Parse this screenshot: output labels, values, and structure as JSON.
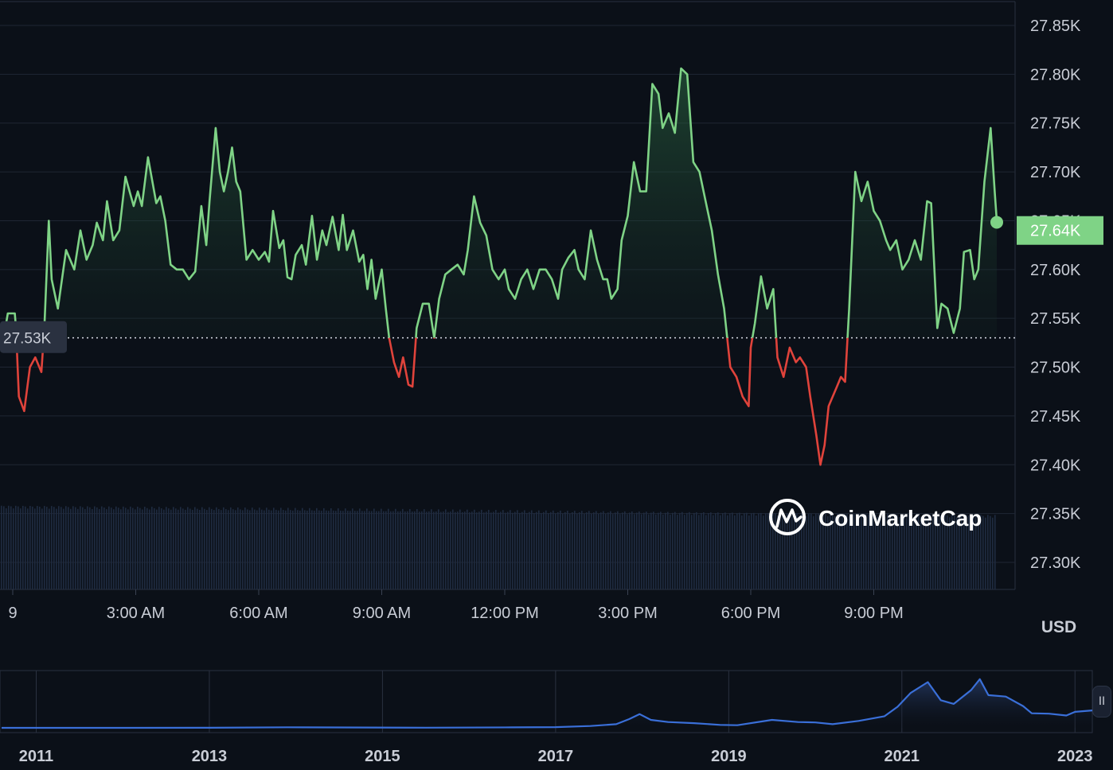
{
  "chart_data": {
    "type": "line",
    "main": {
      "x_tick_labels": [
        "9",
        "3:00 AM",
        "6:00 AM",
        "9:00 AM",
        "12:00 PM",
        "3:00 PM",
        "6:00 PM",
        "9:00 PM"
      ],
      "y_tick_labels": [
        "27.85K",
        "27.80K",
        "27.75K",
        "27.70K",
        "27.65K",
        "27.60K",
        "27.55K",
        "27.50K",
        "27.45K",
        "27.40K",
        "27.35K",
        "27.30K"
      ],
      "y_ticks": [
        27850,
        27800,
        27750,
        27700,
        27650,
        27600,
        27550,
        27500,
        27450,
        27400,
        27350,
        27300
      ],
      "ylim": [
        27275,
        27870
      ],
      "xlim": [
        -0.3,
        24
      ],
      "reference_value": 27530,
      "reference_label": "27.53K",
      "current_value": 27640,
      "current_label": "27.64K",
      "currency": "USD",
      "grid": true,
      "points": [
        [
          -0.3,
          27540
        ],
        [
          -0.18,
          27540
        ],
        [
          -0.12,
          27555
        ],
        [
          0.05,
          27555
        ],
        [
          0.08,
          27540
        ],
        [
          0.15,
          27470
        ],
        [
          0.28,
          27455
        ],
        [
          0.42,
          27500
        ],
        [
          0.55,
          27510
        ],
        [
          0.7,
          27495
        ],
        [
          0.77,
          27540
        ],
        [
          0.88,
          27650
        ],
        [
          0.95,
          27590
        ],
        [
          1.1,
          27560
        ],
        [
          1.3,
          27620
        ],
        [
          1.5,
          27600
        ],
        [
          1.65,
          27640
        ],
        [
          1.8,
          27610
        ],
        [
          1.95,
          27625
        ],
        [
          2.05,
          27648
        ],
        [
          2.2,
          27630
        ],
        [
          2.3,
          27670
        ],
        [
          2.45,
          27630
        ],
        [
          2.6,
          27640
        ],
        [
          2.75,
          27695
        ],
        [
          2.95,
          27665
        ],
        [
          3.05,
          27680
        ],
        [
          3.15,
          27665
        ],
        [
          3.3,
          27715
        ],
        [
          3.5,
          27668
        ],
        [
          3.6,
          27675
        ],
        [
          3.72,
          27650
        ],
        [
          3.85,
          27605
        ],
        [
          4.0,
          27600
        ],
        [
          4.15,
          27600
        ],
        [
          4.3,
          27590
        ],
        [
          4.45,
          27598
        ],
        [
          4.6,
          27665
        ],
        [
          4.72,
          27625
        ],
        [
          4.8,
          27670
        ],
        [
          4.95,
          27745
        ],
        [
          5.05,
          27700
        ],
        [
          5.15,
          27680
        ],
        [
          5.25,
          27700
        ],
        [
          5.35,
          27725
        ],
        [
          5.45,
          27690
        ],
        [
          5.55,
          27680
        ],
        [
          5.7,
          27610
        ],
        [
          5.85,
          27620
        ],
        [
          6.0,
          27610
        ],
        [
          6.15,
          27618
        ],
        [
          6.25,
          27608
        ],
        [
          6.35,
          27660
        ],
        [
          6.5,
          27622
        ],
        [
          6.6,
          27630
        ],
        [
          6.7,
          27592
        ],
        [
          6.8,
          27590
        ],
        [
          6.9,
          27615
        ],
        [
          7.05,
          27625
        ],
        [
          7.15,
          27605
        ],
        [
          7.3,
          27655
        ],
        [
          7.42,
          27610
        ],
        [
          7.55,
          27640
        ],
        [
          7.65,
          27625
        ],
        [
          7.8,
          27654
        ],
        [
          7.95,
          27620
        ],
        [
          8.05,
          27656
        ],
        [
          8.15,
          27620
        ],
        [
          8.3,
          27640
        ],
        [
          8.45,
          27608
        ],
        [
          8.55,
          27615
        ],
        [
          8.65,
          27580
        ],
        [
          8.75,
          27610
        ],
        [
          8.85,
          27570
        ],
        [
          9.0,
          27600
        ],
        [
          9.1,
          27560
        ],
        [
          9.18,
          27530
        ],
        [
          9.3,
          27505
        ],
        [
          9.42,
          27490
        ],
        [
          9.52,
          27510
        ],
        [
          9.65,
          27482
        ],
        [
          9.75,
          27480
        ],
        [
          9.85,
          27540
        ],
        [
          10.0,
          27565
        ],
        [
          10.15,
          27565
        ],
        [
          10.28,
          27530
        ],
        [
          10.4,
          27570
        ],
        [
          10.55,
          27595
        ],
        [
          10.7,
          27600
        ],
        [
          10.85,
          27605
        ],
        [
          11.0,
          27595
        ],
        [
          11.1,
          27620
        ],
        [
          11.25,
          27675
        ],
        [
          11.4,
          27648
        ],
        [
          11.55,
          27635
        ],
        [
          11.7,
          27600
        ],
        [
          11.85,
          27590
        ],
        [
          12.0,
          27600
        ],
        [
          12.1,
          27580
        ],
        [
          12.25,
          27570
        ],
        [
          12.4,
          27590
        ],
        [
          12.55,
          27600
        ],
        [
          12.7,
          27580
        ],
        [
          12.85,
          27600
        ],
        [
          13.0,
          27600
        ],
        [
          13.15,
          27590
        ],
        [
          13.3,
          27570
        ],
        [
          13.4,
          27600
        ],
        [
          13.55,
          27612
        ],
        [
          13.7,
          27620
        ],
        [
          13.8,
          27600
        ],
        [
          13.95,
          27590
        ],
        [
          14.1,
          27640
        ],
        [
          14.25,
          27610
        ],
        [
          14.4,
          27590
        ],
        [
          14.5,
          27590
        ],
        [
          14.6,
          27570
        ],
        [
          14.75,
          27580
        ],
        [
          14.85,
          27630
        ],
        [
          15.0,
          27655
        ],
        [
          15.15,
          27710
        ],
        [
          15.3,
          27680
        ],
        [
          15.45,
          27680
        ],
        [
          15.6,
          27790
        ],
        [
          15.75,
          27780
        ],
        [
          15.85,
          27745
        ],
        [
          16.0,
          27760
        ],
        [
          16.15,
          27740
        ],
        [
          16.3,
          27806
        ],
        [
          16.45,
          27800
        ],
        [
          16.6,
          27710
        ],
        [
          16.75,
          27700
        ],
        [
          16.9,
          27670
        ],
        [
          17.05,
          27640
        ],
        [
          17.2,
          27595
        ],
        [
          17.35,
          27560
        ],
        [
          17.5,
          27500
        ],
        [
          17.65,
          27490
        ],
        [
          17.8,
          27470
        ],
        [
          17.95,
          27460
        ],
        [
          18.0,
          27520
        ],
        [
          18.1,
          27545
        ],
        [
          18.25,
          27593
        ],
        [
          18.4,
          27560
        ],
        [
          18.55,
          27580
        ],
        [
          18.65,
          27510
        ],
        [
          18.8,
          27490
        ],
        [
          18.95,
          27520
        ],
        [
          19.1,
          27505
        ],
        [
          19.2,
          27510
        ],
        [
          19.35,
          27500
        ],
        [
          19.45,
          27470
        ],
        [
          19.6,
          27430
        ],
        [
          19.7,
          27400
        ],
        [
          19.8,
          27420
        ],
        [
          19.9,
          27460
        ],
        [
          20.0,
          27470
        ],
        [
          20.1,
          27480
        ],
        [
          20.2,
          27490
        ],
        [
          20.3,
          27485
        ],
        [
          20.4,
          27560
        ],
        [
          20.55,
          27700
        ],
        [
          20.7,
          27670
        ],
        [
          20.85,
          27690
        ],
        [
          21.0,
          27660
        ],
        [
          21.15,
          27650
        ],
        [
          21.3,
          27630
        ],
        [
          21.4,
          27620
        ],
        [
          21.55,
          27630
        ],
        [
          21.7,
          27600
        ],
        [
          21.85,
          27610
        ],
        [
          22.0,
          27630
        ],
        [
          22.15,
          27610
        ],
        [
          22.3,
          27670
        ],
        [
          22.4,
          27668
        ],
        [
          22.55,
          27540
        ],
        [
          22.65,
          27565
        ],
        [
          22.8,
          27560
        ],
        [
          22.95,
          27535
        ],
        [
          23.1,
          27560
        ],
        [
          23.2,
          27618
        ],
        [
          23.35,
          27620
        ],
        [
          23.45,
          27590
        ],
        [
          23.55,
          27600
        ],
        [
          23.7,
          27690
        ],
        [
          23.85,
          27745
        ],
        [
          23.95,
          27680
        ],
        [
          24.0,
          27650
        ]
      ]
    },
    "overview": {
      "x_tick_labels": [
        "2011",
        "2013",
        "2015",
        "2017",
        "2019",
        "2021",
        "2023"
      ],
      "x_ticks": [
        2011,
        2013,
        2015,
        2017,
        2019,
        2021,
        2023
      ],
      "xlim": [
        2010.6,
        2023.2
      ],
      "ylim": [
        0,
        69000
      ],
      "points": [
        [
          2010.6,
          0
        ],
        [
          2012.0,
          10
        ],
        [
          2013.0,
          100
        ],
        [
          2013.9,
          800
        ],
        [
          2014.5,
          500
        ],
        [
          2015.5,
          250
        ],
        [
          2016.5,
          700
        ],
        [
          2017.0,
          1000
        ],
        [
          2017.4,
          2500
        ],
        [
          2017.7,
          5000
        ],
        [
          2017.85,
          12000
        ],
        [
          2017.97,
          19000
        ],
        [
          2018.1,
          11000
        ],
        [
          2018.3,
          8000
        ],
        [
          2018.6,
          6500
        ],
        [
          2018.9,
          4000
        ],
        [
          2019.1,
          3600
        ],
        [
          2019.5,
          11000
        ],
        [
          2019.8,
          8000
        ],
        [
          2020.0,
          7500
        ],
        [
          2020.2,
          5000
        ],
        [
          2020.5,
          9500
        ],
        [
          2020.8,
          16000
        ],
        [
          2020.95,
          29000
        ],
        [
          2021.1,
          48000
        ],
        [
          2021.3,
          63000
        ],
        [
          2021.45,
          38000
        ],
        [
          2021.6,
          33000
        ],
        [
          2021.8,
          52000
        ],
        [
          2021.9,
          67000
        ],
        [
          2022.0,
          45000
        ],
        [
          2022.2,
          43000
        ],
        [
          2022.4,
          30000
        ],
        [
          2022.5,
          20000
        ],
        [
          2022.7,
          19500
        ],
        [
          2022.9,
          17000
        ],
        [
          2023.0,
          22000
        ],
        [
          2023.2,
          24000
        ]
      ]
    }
  },
  "watermark": {
    "brand": "CoinMarketCap"
  },
  "colors": {
    "up": "#7fd386",
    "down": "#e0433b",
    "overview_line": "#3a6fd8",
    "current_badge": "#7fd386"
  },
  "icons": {
    "handle": "pause-handle-icon"
  },
  "handle_glyph": "II"
}
